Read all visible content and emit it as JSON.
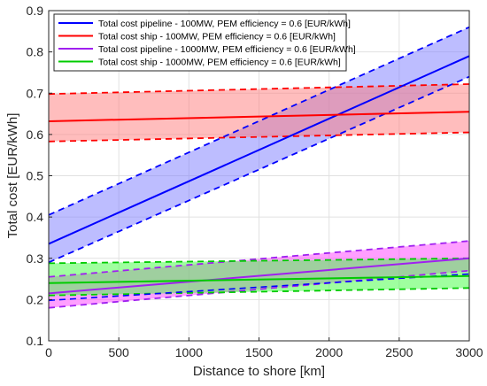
{
  "chart_data": {
    "type": "line",
    "title": "",
    "xlabel": "Distance to shore [km]",
    "ylabel": "Total cost [EUR/kWh]",
    "xlim": [
      0,
      3000
    ],
    "ylim": [
      0.1,
      0.9
    ],
    "xticks": [
      0,
      500,
      1000,
      1500,
      2000,
      2500,
      3000
    ],
    "yticks": [
      0.1,
      0.2,
      0.3,
      0.4,
      0.5,
      0.6,
      0.7,
      0.8,
      0.9
    ],
    "grid": true,
    "legend_position": "top-left",
    "x": [
      0,
      3000
    ],
    "series": [
      {
        "name": "Total cost pipeline - 100MW, PEM efficiency = 0.6 [EUR/kWh]",
        "color": "#0000ff",
        "values": [
          0.335,
          0.79
        ],
        "lower": [
          0.29,
          0.74
        ],
        "upper": [
          0.405,
          0.86
        ],
        "band_color": "#7b7bff",
        "in_legend": true
      },
      {
        "name": "Total cost ship - 100MW, PEM efficiency = 0.6 [EUR/kWh]",
        "color": "#ff0000",
        "values": [
          0.632,
          0.655
        ],
        "lower": [
          0.583,
          0.605
        ],
        "upper": [
          0.698,
          0.722
        ],
        "band_color": "#ff7b7b",
        "in_legend": true
      },
      {
        "name": "Total cost pipeline - 1000MW, PEM efficiency = 0.6 [EUR/kWh]",
        "color": "#a020f0",
        "values": [
          0.215,
          0.3
        ],
        "lower": [
          0.18,
          0.27
        ],
        "upper": [
          0.255,
          0.342
        ],
        "band_color": "#ff40ff",
        "in_legend": true
      },
      {
        "name": "Total cost ship - 1000MW, PEM efficiency = 0.6 [EUR/kWh]",
        "color": "#00cc00",
        "values": [
          0.24,
          0.257
        ],
        "lower": [
          0.21,
          0.228
        ],
        "upper": [
          0.288,
          0.3
        ],
        "band_color": "#40ff40",
        "in_legend": true
      },
      {
        "name": "",
        "color": "#0000ff",
        "values": [
          0.198,
          0.262
        ],
        "lower": [
          0.198,
          0.262
        ],
        "upper": [
          0.198,
          0.262
        ],
        "band_color": "",
        "in_legend": false,
        "dashed_only": true
      }
    ]
  }
}
